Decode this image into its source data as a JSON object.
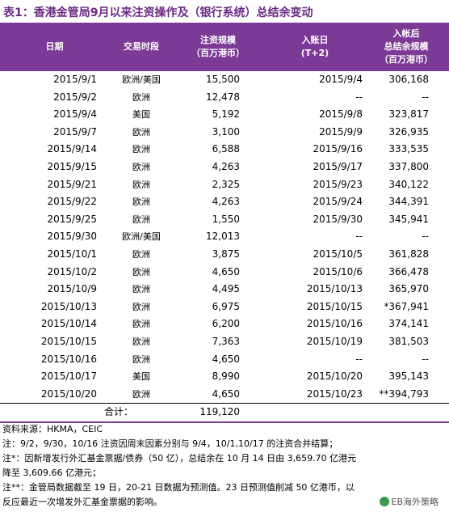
{
  "title": "表1：香港金管局9月以来注资操作及（银行系统）总结余变动",
  "headers": {
    "date": "日期",
    "period": "交易时段",
    "amount_l1": "注资规模",
    "amount_l2": "（百万港币）",
    "entry_l1": "入账日",
    "entry_l2": "(T+2)",
    "total_l1": "入帐后",
    "total_l2": "总结余规模",
    "total_l3": "（百万港币）"
  },
  "rows": [
    {
      "date": "2015/9/1",
      "period": "欧洲/美国",
      "amount": "15,500",
      "entry": "2015/9/4",
      "total": "306,168"
    },
    {
      "date": "2015/9/2",
      "period": "欧洲",
      "amount": "12,478",
      "entry": "--",
      "total": "--"
    },
    {
      "date": "2015/9/4",
      "period": "美国",
      "amount": "5,192",
      "entry": "2015/9/8",
      "total": "323,817"
    },
    {
      "date": "2015/9/7",
      "period": "欧洲",
      "amount": "3,100",
      "entry": "2015/9/9",
      "total": "326,935"
    },
    {
      "date": "2015/9/14",
      "period": "欧洲",
      "amount": "6,588",
      "entry": "2015/9/16",
      "total": "333,535"
    },
    {
      "date": "2015/9/15",
      "period": "欧洲",
      "amount": "4,263",
      "entry": "2015/9/17",
      "total": "337,800"
    },
    {
      "date": "2015/9/21",
      "period": "欧洲",
      "amount": "2,325",
      "entry": "2015/9/23",
      "total": "340,122"
    },
    {
      "date": "2015/9/22",
      "period": "欧洲",
      "amount": "4,263",
      "entry": "2015/9/24",
      "total": "344,391"
    },
    {
      "date": "2015/9/25",
      "period": "欧洲",
      "amount": "1,550",
      "entry": "2015/9/30",
      "total": "345,941"
    },
    {
      "date": "2015/9/30",
      "period": "欧洲/美国",
      "amount": "12,013",
      "entry": "--",
      "total": "--"
    },
    {
      "date": "2015/10/1",
      "period": "欧洲",
      "amount": "3,875",
      "entry": "2015/10/5",
      "total": "361,828"
    },
    {
      "date": "2015/10/2",
      "period": "欧洲",
      "amount": "4,650",
      "entry": "2015/10/6",
      "total": "366,478"
    },
    {
      "date": "2015/10/9",
      "period": "欧洲",
      "amount": "4,495",
      "entry": "2015/10/13",
      "total": "365,970"
    },
    {
      "date": "2015/10/13",
      "period": "欧洲",
      "amount": "6,975",
      "entry": "2015/10/15",
      "total": "*367,941"
    },
    {
      "date": "2015/10/14",
      "period": "欧洲",
      "amount": "6,200",
      "entry": "2015/10/16",
      "total": "374,141"
    },
    {
      "date": "2015/10/15",
      "period": "欧洲",
      "amount": "7,363",
      "entry": "2015/10/19",
      "total": "381,503"
    },
    {
      "date": "2015/10/16",
      "period": "欧洲",
      "amount": "4,650",
      "entry": "--",
      "total": "--"
    },
    {
      "date": "2015/10/17",
      "period": "美国",
      "amount": "8,990",
      "entry": "2015/10/20",
      "total": "395,143"
    },
    {
      "date": "2015/10/20",
      "period": "欧洲",
      "amount": "4,650",
      "entry": "2015/10/23",
      "total": "**394,793"
    }
  ],
  "total_row": {
    "label": "合计：",
    "amount": "119,120"
  },
  "notes": [
    "资料来源：HKMA，CEIC",
    "注：9/2，9/30，10/16 注资因周末因素分别与 9/4，10/1,10/17 的注资合并结算；",
    "注*：因新增发行外汇基金票据/债券（50 亿），总结余在 10 月 14 日由 3,659.70 亿港元",
    "降至 3,609.66 亿港元；",
    "注**：金管局数据截至 19 日，20-21 日数据为预测值。23 日预测值削减 50 亿港币，以",
    "反应最近一次增发外汇基金票据的影响。"
  ],
  "watermark": "EB海外策略",
  "colors": {
    "header_bg": "#7b3a96",
    "title": "#6b2a85"
  }
}
